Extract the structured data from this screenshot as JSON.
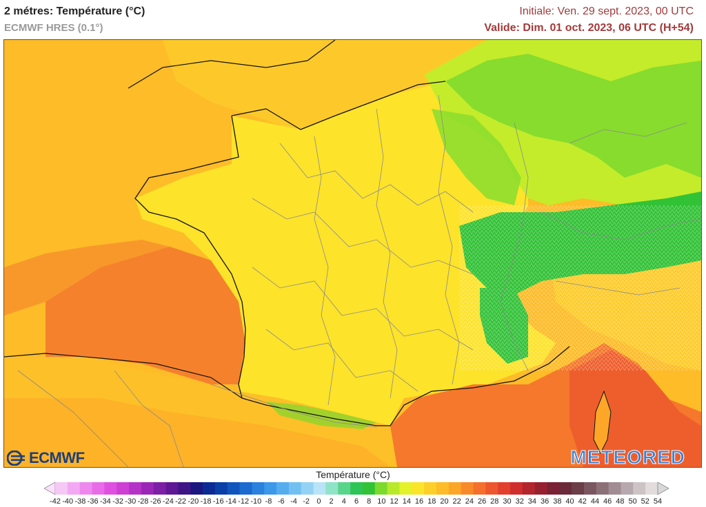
{
  "header": {
    "title": "2 métres: Température (°C)",
    "model": "ECMWF HRES (0.1°)",
    "initial": "Initiale: Ven. 29 sept. 2023, 00 UTC",
    "valid": "Valide: Dim. 01 oct. 2023, 06 UTC (H+54)"
  },
  "logos": {
    "left": "ECMWF",
    "right": "METEORED"
  },
  "legend": {
    "title": "Température (°C)",
    "ticks": [
      "-42",
      "-40",
      "-38",
      "-36",
      "-34",
      "-32",
      "-30",
      "-28",
      "-26",
      "-24",
      "-22",
      "-20",
      "-18",
      "-16",
      "-14",
      "-12",
      "-10",
      "-8",
      "-6",
      "-4",
      "-2",
      "0",
      "2",
      "4",
      "6",
      "8",
      "10",
      "12",
      "14",
      "16",
      "18",
      "20",
      "22",
      "24",
      "26",
      "28",
      "30",
      "32",
      "34",
      "36",
      "38",
      "40",
      "42",
      "44",
      "46",
      "48",
      "50",
      "52",
      "54"
    ],
    "colors": [
      "#f6c8f6",
      "#f3a8f3",
      "#ee88ee",
      "#e86ce8",
      "#df50e0",
      "#cd3fd5",
      "#b532c8",
      "#9a26b8",
      "#7c1ea6",
      "#5f1795",
      "#3f1586",
      "#1c1680",
      "#0b2a93",
      "#0b3fa8",
      "#1055bd",
      "#1a6ad0",
      "#2a82de",
      "#3c98e8",
      "#55adee",
      "#72c0f2",
      "#94d2f5",
      "#b9e3f7",
      "#8fe3c7",
      "#58d58a",
      "#2fc457",
      "#32c236",
      "#7cd92e",
      "#b8e92b",
      "#e3f22a",
      "#fbe52a",
      "#fdd029",
      "#fdbc28",
      "#fca628",
      "#f98a2a",
      "#f5702c",
      "#ee562d",
      "#e23f2d",
      "#cf2e2d",
      "#b3242d",
      "#962030",
      "#7a2034",
      "#6a2a3a",
      "#6b3e48",
      "#7a5660",
      "#8c7078",
      "#a08c92",
      "#b6a8ac",
      "#cdc4c6",
      "#e2dcdd"
    ],
    "low_end_color": "#fbe0fb",
    "high_end_color": "#d8d8d8"
  }
}
